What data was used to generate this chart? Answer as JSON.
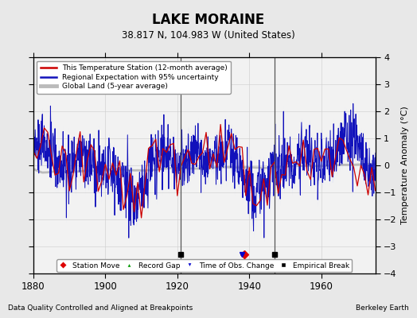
{
  "title": "LAKE MORAINE",
  "subtitle": "38.817 N, 104.983 W (United States)",
  "xlabel_note": "Data Quality Controlled and Aligned at Breakpoints",
  "xlabel_right": "Berkeley Earth",
  "ylabel": "Temperature Anomaly (°C)",
  "xmin": 1880,
  "xmax": 1975,
  "ymin": -4,
  "ymax": 4,
  "yticks": [
    -4,
    -3,
    -2,
    -1,
    0,
    1,
    2,
    3,
    4
  ],
  "xticks": [
    1880,
    1900,
    1920,
    1940,
    1960
  ],
  "bg_color": "#e8e8e8",
  "plot_bg_color": "#f2f2f2",
  "station_line_color": "#cc0000",
  "regional_line_color": "#1111bb",
  "regional_fill_color": "#aabbff",
  "global_line_color": "#bbbbbb",
  "grid_color": "#cccccc",
  "markers": {
    "station_moves": [
      1938.5
    ],
    "record_gaps": [],
    "obs_changes": [
      1938.0
    ],
    "empirical_breaks": [
      1921,
      1947
    ]
  },
  "marker_y": -3.3,
  "seed": 17
}
